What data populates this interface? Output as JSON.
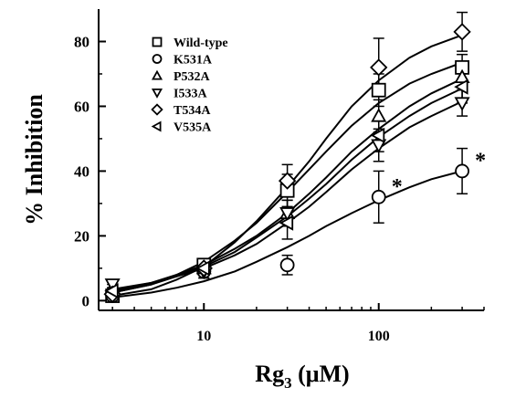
{
  "chart_data": {
    "type": "scatter",
    "x_scale": "log",
    "xlabel_main": "Rg",
    "xlabel_sub": "3",
    "xlabel_unit": " (μM)",
    "ylabel": "% Inhibition",
    "xlim": [
      2.5,
      400
    ],
    "ylim": [
      -3,
      90
    ],
    "x_ticks": [
      10,
      100
    ],
    "x_tick_labels": [
      "10",
      "100"
    ],
    "y_ticks": [
      0,
      20,
      40,
      60,
      80
    ],
    "y_tick_labels": [
      "0",
      "20",
      "40",
      "60",
      "80"
    ],
    "legend_position": "top-left",
    "series": [
      {
        "name": "Wild-type",
        "marker": "square",
        "x": [
          3,
          10,
          30,
          100,
          300
        ],
        "y": [
          1.5,
          11,
          34,
          65,
          72
        ],
        "err": [
          0.5,
          2,
          5,
          5,
          4
        ],
        "fit_x": [
          3,
          5,
          7,
          10,
          15,
          20,
          30,
          40,
          50,
          70,
          100,
          150,
          200,
          300
        ],
        "fit_y": [
          2.5,
          5,
          8,
          12,
          18.5,
          24,
          33.5,
          40.5,
          46,
          54,
          61,
          67,
          70,
          73.5
        ]
      },
      {
        "name": "K531A",
        "marker": "circle",
        "x": [
          3,
          10,
          30,
          100,
          300
        ],
        "y": [
          1.5,
          9,
          11,
          32,
          40
        ],
        "err": [
          0.5,
          2,
          3,
          8,
          7
        ],
        "fit_x": [
          3,
          5,
          7,
          10,
          15,
          20,
          30,
          40,
          50,
          70,
          100,
          150,
          200,
          300
        ],
        "fit_y": [
          1,
          2.5,
          4,
          6,
          9,
          12,
          16.5,
          20,
          23,
          27,
          31,
          35,
          37.5,
          40
        ]
      },
      {
        "name": "P532A",
        "marker": "triangle-up",
        "x": [
          3,
          10,
          30,
          100,
          300
        ],
        "y": [
          4,
          10,
          27,
          57,
          69
        ],
        "err": [
          1,
          2,
          4,
          5,
          4
        ],
        "fit_x": [
          3,
          5,
          7,
          10,
          15,
          20,
          30,
          40,
          50,
          70,
          100,
          150,
          200,
          300
        ],
        "fit_y": [
          3,
          5.5,
          8,
          11,
          16,
          20,
          27,
          33,
          38,
          46,
          53,
          60,
          64,
          68.5
        ]
      },
      {
        "name": "I533A",
        "marker": "triangle-down",
        "x": [
          3,
          10,
          30,
          100,
          300
        ],
        "y": [
          5,
          9,
          27,
          48,
          61
        ],
        "err": [
          1,
          2,
          4,
          5,
          4
        ],
        "fit_x": [
          3,
          5,
          7,
          10,
          15,
          20,
          30,
          40,
          50,
          70,
          100,
          150,
          200,
          300
        ],
        "fit_y": [
          3.5,
          5.5,
          7.5,
          10,
          14,
          17.5,
          24,
          29,
          33.5,
          40.5,
          47,
          53.5,
          57,
          61.5
        ]
      },
      {
        "name": "T534A",
        "marker": "diamond",
        "x": [
          3,
          10,
          30,
          100,
          300
        ],
        "y": [
          2,
          10,
          37,
          72,
          83
        ],
        "err": [
          0.5,
          2,
          5,
          9,
          6
        ],
        "fit_x": [
          3,
          5,
          7,
          10,
          15,
          20,
          30,
          40,
          50,
          70,
          100,
          150,
          200,
          300
        ],
        "fit_y": [
          1.5,
          3.5,
          6.5,
          10.5,
          18,
          24.5,
          35,
          43,
          50,
          60,
          68,
          75,
          78.5,
          82
        ]
      },
      {
        "name": "V535A",
        "marker": "triangle-left",
        "x": [
          3,
          10,
          30,
          100,
          300
        ],
        "y": [
          3,
          10,
          24,
          51,
          66
        ],
        "err": [
          1,
          2,
          5,
          5,
          5
        ],
        "fit_x": [
          3,
          5,
          7,
          10,
          15,
          20,
          30,
          40,
          50,
          70,
          100,
          150,
          200,
          300
        ],
        "fit_y": [
          2.5,
          5,
          7.5,
          10.5,
          15,
          19.5,
          26,
          31.5,
          36,
          43.5,
          50.5,
          57,
          61,
          65.5
        ]
      }
    ],
    "annotations": [
      {
        "text": "*",
        "x": 100,
        "y": 32
      },
      {
        "text": "*",
        "x": 300,
        "y": 40
      }
    ]
  }
}
